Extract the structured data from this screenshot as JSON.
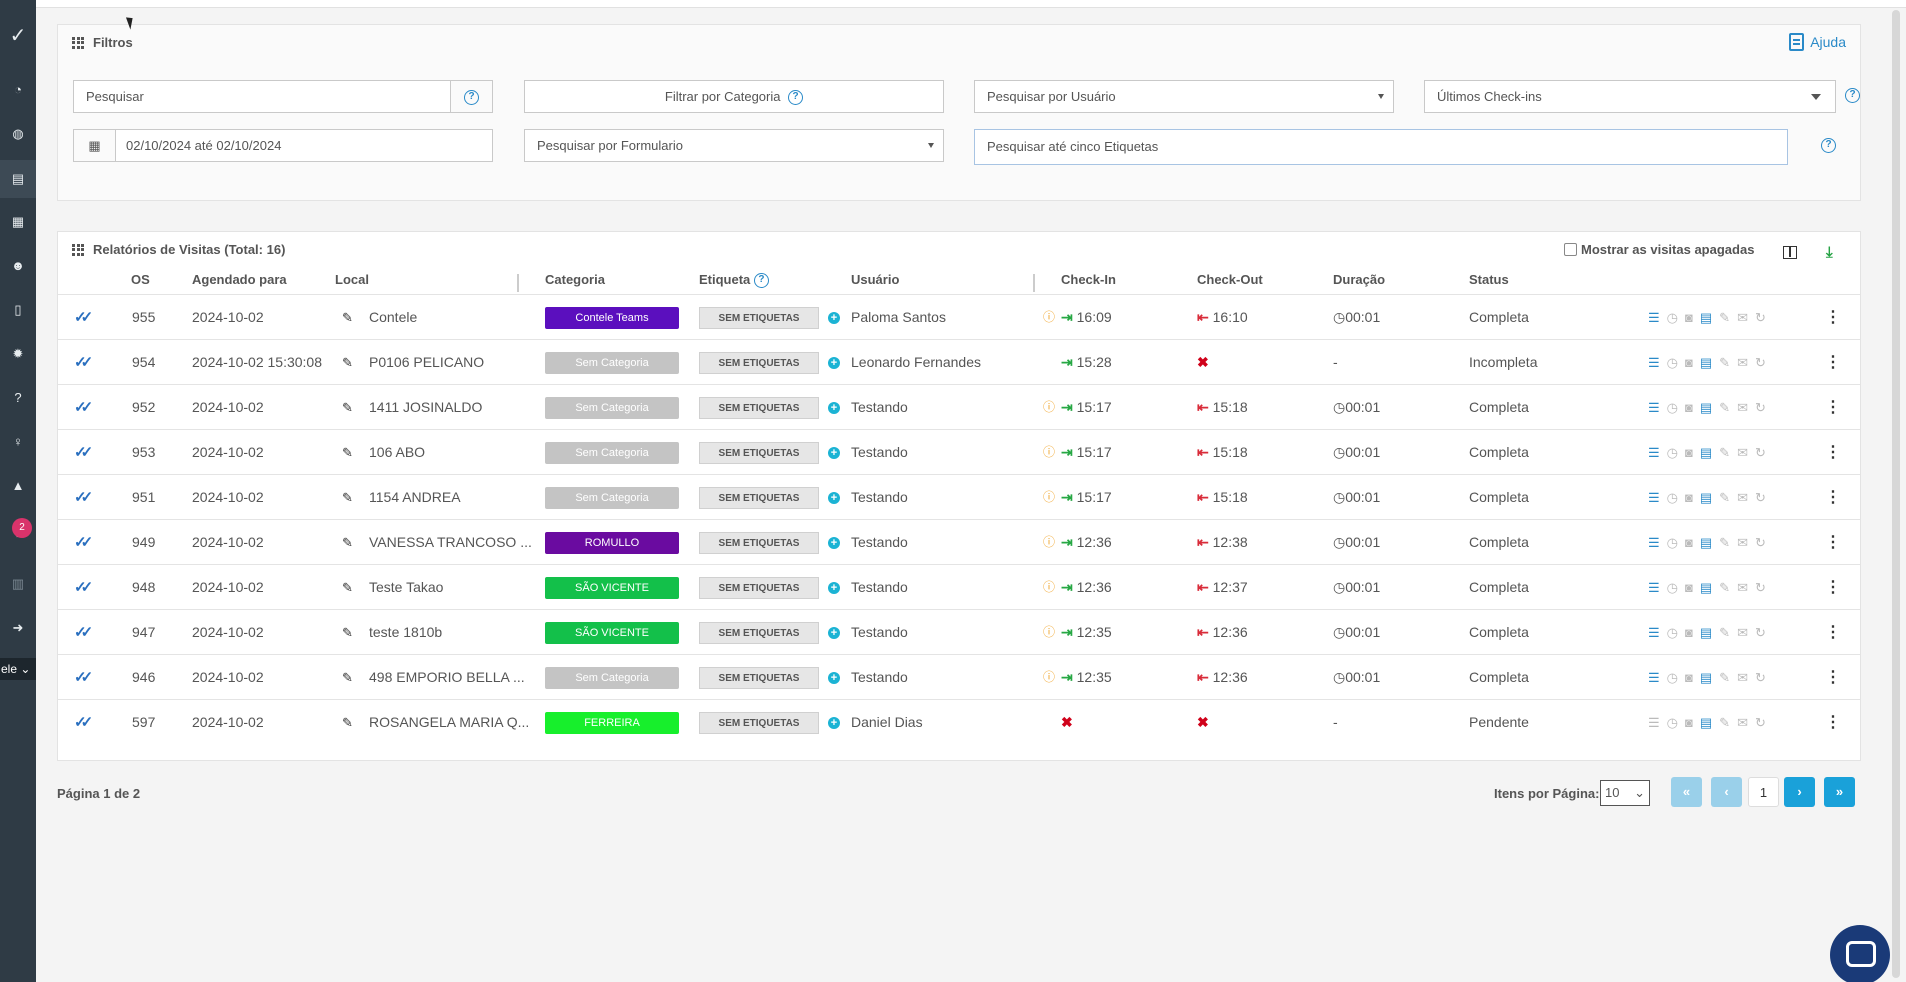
{
  "sidebar": {
    "badge": "2",
    "select_value": "ele"
  },
  "filters": {
    "title": "Filtros",
    "help": "Ajuda",
    "search_placeholder": "Pesquisar",
    "category_filter": "Filtrar por Categoria",
    "user_search": "Pesquisar por Usuário",
    "checkins": "Últimos Check-ins",
    "date_range": "02/10/2024 até 02/10/2024",
    "form_search": "Pesquisar por Formulario",
    "tags_search": "Pesquisar até cinco Etiquetas"
  },
  "reports": {
    "title": "Relatórios de Visitas (Total: 16)",
    "show_deleted": "Mostrar as visitas apagadas",
    "columns": {
      "os": "OS",
      "scheduled": "Agendado para",
      "local": "Local",
      "category": "Categoria",
      "tag": "Etiqueta",
      "user": "Usuário",
      "checkin": "Check-In",
      "checkout": "Check-Out",
      "duration": "Duração",
      "status": "Status"
    },
    "rows": [
      {
        "os": "955",
        "date": "2024-10-02",
        "local": "Contele",
        "category": "Contele Teams",
        "cat_color": "#5b0fbe",
        "tag": "SEM ETIQUETAS",
        "user": "Paloma Santos",
        "checkin": "16:09",
        "checkout": "16:10",
        "duration": "00:01",
        "status": "Completa"
      },
      {
        "os": "954",
        "date": "2024-10-02 15:30:08",
        "local": "P0106 PELICANO",
        "category": "Sem Categoria",
        "cat_color": "#c4c4c4",
        "tag": "SEM ETIQUETAS",
        "user": "Leonardo Fernandes",
        "checkin": "15:28",
        "checkout": "",
        "duration": "-",
        "status": "Incompleta"
      },
      {
        "os": "952",
        "date": "2024-10-02",
        "local": "1411 JOSINALDO",
        "category": "Sem Categoria",
        "cat_color": "#c4c4c4",
        "tag": "SEM ETIQUETAS",
        "user": "Testando",
        "checkin": "15:17",
        "checkout": "15:18",
        "duration": "00:01",
        "status": "Completa"
      },
      {
        "os": "953",
        "date": "2024-10-02",
        "local": "106 ABO",
        "category": "Sem Categoria",
        "cat_color": "#c4c4c4",
        "tag": "SEM ETIQUETAS",
        "user": "Testando",
        "checkin": "15:17",
        "checkout": "15:18",
        "duration": "00:01",
        "status": "Completa"
      },
      {
        "os": "951",
        "date": "2024-10-02",
        "local": "1154 ANDREA",
        "category": "Sem Categoria",
        "cat_color": "#c4c4c4",
        "tag": "SEM ETIQUETAS",
        "user": "Testando",
        "checkin": "15:17",
        "checkout": "15:18",
        "duration": "00:01",
        "status": "Completa"
      },
      {
        "os": "949",
        "date": "2024-10-02",
        "local": "VANESSA TRANCOSO ...",
        "category": "ROMULLO",
        "cat_color": "#6a0ba0",
        "tag": "SEM ETIQUETAS",
        "user": "Testando",
        "checkin": "12:36",
        "checkout": "12:38",
        "duration": "00:01",
        "status": "Completa"
      },
      {
        "os": "948",
        "date": "2024-10-02",
        "local": "Teste Takao",
        "category": "SÃO VICENTE",
        "cat_color": "#13c04a",
        "tag": "SEM ETIQUETAS",
        "user": "Testando",
        "checkin": "12:36",
        "checkout": "12:37",
        "duration": "00:01",
        "status": "Completa"
      },
      {
        "os": "947",
        "date": "2024-10-02",
        "local": "teste 1810b",
        "category": "SÃO VICENTE",
        "cat_color": "#13c04a",
        "tag": "SEM ETIQUETAS",
        "user": "Testando",
        "checkin": "12:35",
        "checkout": "12:36",
        "duration": "00:01",
        "status": "Completa"
      },
      {
        "os": "946",
        "date": "2024-10-02",
        "local": "498 EMPORIO BELLA ...",
        "category": "Sem Categoria",
        "cat_color": "#c4c4c4",
        "tag": "SEM ETIQUETAS",
        "user": "Testando",
        "checkin": "12:35",
        "checkout": "12:36",
        "duration": "00:01",
        "status": "Completa"
      },
      {
        "os": "597",
        "date": "2024-10-02",
        "local": "ROSANGELA MARIA Q...",
        "category": "FERREIRA",
        "cat_color": "#17ef2c",
        "tag": "SEM ETIQUETAS",
        "user": "Daniel Dias",
        "checkin": "",
        "checkout": "",
        "duration": "-",
        "status": "Pendente"
      }
    ]
  },
  "footer": {
    "page_info": "Página 1 de 2",
    "per_page_label": "Itens por Página:",
    "per_page_value": "10",
    "current_page": "1"
  }
}
